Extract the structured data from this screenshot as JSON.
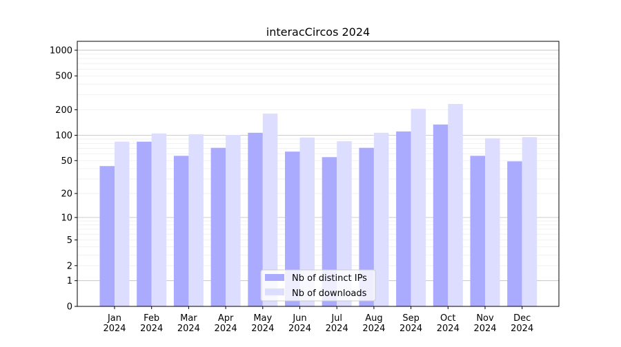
{
  "chart_data": {
    "type": "bar",
    "title": "interacCircos 2024",
    "xlabel": "",
    "ylabel": "",
    "yscale": "log(1+y)",
    "ylim": [
      0,
      1300
    ],
    "grid": true,
    "legend_position": "lower-center",
    "categories": [
      "Jan\n2024",
      "Feb\n2024",
      "Mar\n2024",
      "Apr\n2024",
      "May\n2024",
      "Jun\n2024",
      "Jul\n2024",
      "Aug\n2024",
      "Sep\n2024",
      "Oct\n2024",
      "Nov\n2024",
      "Dec\n2024"
    ],
    "y_ticks": [
      0,
      1,
      2,
      5,
      10,
      20,
      50,
      100,
      200,
      500,
      1000
    ],
    "series": [
      {
        "name": "Nb of distinct IPs",
        "color": "#aaaaff",
        "values": [
          43,
          84,
          57,
          71,
          107,
          64,
          55,
          71,
          111,
          134,
          57,
          49
        ]
      },
      {
        "name": "Nb of downloads",
        "color": "#ddddff",
        "values": [
          84,
          105,
          103,
          101,
          180,
          94,
          85,
          107,
          205,
          234,
          92,
          95
        ]
      }
    ]
  }
}
